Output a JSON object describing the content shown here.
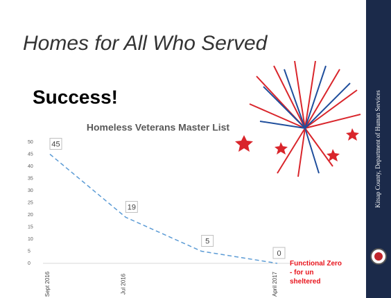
{
  "slide": {
    "title": "Homes for All Who Served",
    "heading": "Success!",
    "sidebar": "Kitsap County, Department of Human Services"
  },
  "chart_data": {
    "type": "line",
    "title": "Homeless Veterans Master List",
    "categories": [
      "Sept 2016",
      "Jul 2016",
      null,
      "April 2017"
    ],
    "values": [
      45,
      19,
      5,
      0
    ],
    "color": "#5b9bd5",
    "ylim": [
      0,
      50
    ],
    "yticks": [
      0,
      5,
      10,
      15,
      20,
      25,
      30,
      35,
      40,
      45,
      50
    ],
    "annotation": "Functional Zero - for unsheltered",
    "annotation_color": "#e8141c"
  }
}
